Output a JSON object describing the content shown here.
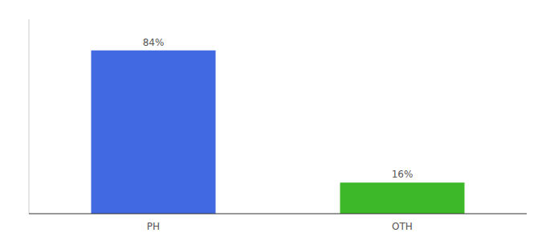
{
  "chart_data": {
    "type": "bar",
    "categories": [
      "PH",
      "OTH"
    ],
    "values": [
      84,
      16
    ],
    "value_labels": [
      "84%",
      "16%"
    ],
    "colors": [
      "#4169E1",
      "#3CB828"
    ],
    "ylim": [
      0,
      100
    ],
    "data_labels": true,
    "tick_labels": "x",
    "grid": false
  }
}
